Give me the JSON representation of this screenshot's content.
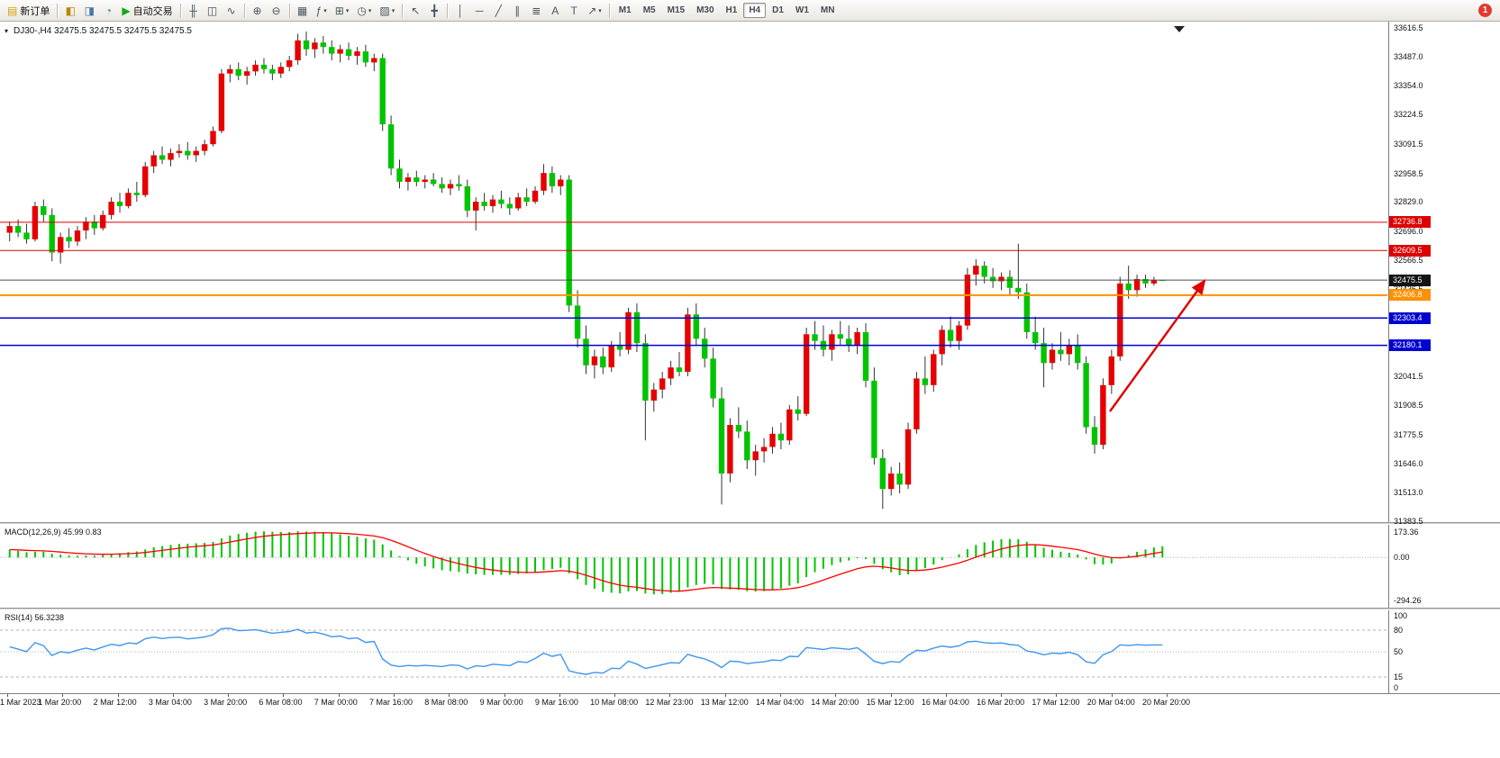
{
  "toolbar": {
    "groups": [
      {
        "items": [
          {
            "name": "new-order",
            "glyph": "▤",
            "glyph_color": "#d59f00",
            "label": "新订单"
          }
        ]
      },
      {
        "items": [
          {
            "name": "chart-window",
            "glyph": "◧",
            "glyph_color": "#b8860b"
          },
          {
            "name": "profiles",
            "glyph": "◨",
            "glyph_color": "#4a76a8"
          },
          {
            "name": "data-window",
            "glyph": "◔",
            "glyph_color": "#4a76a8"
          },
          {
            "name": "auto-trading",
            "glyph": "▶",
            "glyph_color": "#12a812",
            "label": "自动交易"
          }
        ]
      },
      {
        "items": [
          {
            "name": "bars-chart-type",
            "glyph": "╫"
          },
          {
            "name": "candles-chart-type",
            "glyph": "◫"
          },
          {
            "name": "line-chart-type",
            "glyph": "∿"
          }
        ]
      },
      {
        "items": [
          {
            "name": "zoom-in",
            "glyph": "⊕"
          },
          {
            "name": "zoom-out",
            "glyph": "⊖"
          }
        ]
      },
      {
        "items": [
          {
            "name": "tile-windows",
            "glyph": "▦"
          },
          {
            "name": "indicators",
            "glyph": "ƒ",
            "caret": true
          },
          {
            "name": "new-chart",
            "glyph": "⊞",
            "caret": true
          },
          {
            "name": "periods",
            "glyph": "◷",
            "caret": true
          },
          {
            "name": "templates",
            "glyph": "▨",
            "caret": true
          }
        ]
      },
      {
        "items": [
          {
            "name": "cursor-tool",
            "glyph": "↖"
          },
          {
            "name": "crosshair-tool",
            "glyph": "╋"
          }
        ]
      },
      {
        "items": [
          {
            "name": "vertical-line-tool",
            "glyph": "│"
          },
          {
            "name": "horizontal-line-tool",
            "glyph": "─"
          },
          {
            "name": "trendline-tool",
            "glyph": "╱"
          },
          {
            "name": "channel-tool",
            "glyph": "∥"
          },
          {
            "name": "fibonacci-tool",
            "glyph": "≣"
          },
          {
            "name": "text-tool",
            "glyph": "A"
          },
          {
            "name": "label-tool",
            "glyph": "T"
          },
          {
            "name": "arrows-tool",
            "glyph": "↗",
            "caret": true
          }
        ]
      }
    ],
    "timeframes": [
      "M1",
      "M5",
      "M15",
      "M30",
      "H1",
      "H4",
      "D1",
      "W1",
      "MN"
    ],
    "active_timeframe": "H4",
    "notification_badge": "1"
  },
  "chart_data": {
    "type": "candlestick",
    "title_line": "DJ30-,H4  32475.5 32475.5 32475.5 32475.5",
    "symbol": "DJ30-",
    "period": "H4",
    "colors": {
      "up": "#e60000",
      "down": "#00c400",
      "wick": "#333333",
      "macd_hist": "#00c400",
      "macd_signal": "#ff0000",
      "rsi_line": "#3e96f0",
      "levels": "#b3b3b3"
    },
    "main": {
      "ylim": [
        31380,
        33645
      ],
      "price_axis_labels": [
        33616.5,
        33487.0,
        33354.0,
        33224.5,
        33091.5,
        32958.5,
        32829.0,
        32696.0,
        32566.5,
        32436.5,
        32306.5,
        32176.5,
        32041.5,
        31908.5,
        31775.5,
        31646.0,
        31513.0,
        31383.5
      ],
      "horizontal_lines": [
        {
          "name": "resistance-line-1",
          "price": 32736.8,
          "color": "#dd0000",
          "width": 1,
          "tag_bg": "#dd0000"
        },
        {
          "name": "resistance-line-2",
          "price": 32609.5,
          "color": "#dd0000",
          "width": 1,
          "tag_bg": "#dd0000"
        },
        {
          "name": "bid-price-line",
          "price": 32475.5,
          "color": "#4d4d4d",
          "width": 1,
          "tag_bg": "#141414"
        },
        {
          "name": "pivot-line",
          "price": 32406.8,
          "color": "#ff9000",
          "width": 2,
          "tag_bg": "#ff9000"
        },
        {
          "name": "support-line-1",
          "price": 32303.4,
          "color": "#0000d0",
          "width": 1.5,
          "tag_bg": "#0000d0"
        },
        {
          "name": "support-line-2",
          "price": 32180.1,
          "color": "#0000d0",
          "width": 1.5,
          "tag_bg": "#0000d0"
        }
      ],
      "arrow": {
        "from": [
          0.8,
          31880
        ],
        "to": [
          0.868,
          32470
        ],
        "color": "#e00000"
      },
      "candles": [
        [
          32690,
          32740,
          32650,
          32720
        ],
        [
          32720,
          32750,
          32670,
          32690
        ],
        [
          32690,
          32730,
          32640,
          32660
        ],
        [
          32660,
          32830,
          32650,
          32810
        ],
        [
          32810,
          32840,
          32740,
          32770
        ],
        [
          32770,
          32800,
          32560,
          32600
        ],
        [
          32600,
          32690,
          32550,
          32670
        ],
        [
          32670,
          32710,
          32620,
          32650
        ],
        [
          32650,
          32720,
          32630,
          32700
        ],
        [
          32700,
          32760,
          32660,
          32740
        ],
        [
          32740,
          32770,
          32680,
          32710
        ],
        [
          32710,
          32790,
          32700,
          32770
        ],
        [
          32770,
          32850,
          32750,
          32830
        ],
        [
          32830,
          32870,
          32780,
          32810
        ],
        [
          32810,
          32890,
          32800,
          32870
        ],
        [
          32870,
          32920,
          32830,
          32860
        ],
        [
          32860,
          33010,
          32850,
          32990
        ],
        [
          32990,
          33060,
          32960,
          33040
        ],
        [
          33040,
          33080,
          33000,
          33020
        ],
        [
          33020,
          33070,
          32990,
          33050
        ],
        [
          33050,
          33090,
          33030,
          33060
        ],
        [
          33060,
          33100,
          33020,
          33040
        ],
        [
          33040,
          33080,
          33010,
          33060
        ],
        [
          33060,
          33110,
          33040,
          33090
        ],
        [
          33090,
          33170,
          33080,
          33150
        ],
        [
          33150,
          33430,
          33140,
          33410
        ],
        [
          33410,
          33450,
          33370,
          33430
        ],
        [
          33430,
          33460,
          33380,
          33400
        ],
        [
          33400,
          33440,
          33360,
          33420
        ],
        [
          33420,
          33470,
          33400,
          33450
        ],
        [
          33450,
          33480,
          33410,
          33430
        ],
        [
          33430,
          33450,
          33380,
          33410
        ],
        [
          33410,
          33460,
          33390,
          33440
        ],
        [
          33440,
          33490,
          33420,
          33470
        ],
        [
          33470,
          33590,
          33450,
          33560
        ],
        [
          33560,
          33600,
          33490,
          33520
        ],
        [
          33520,
          33570,
          33480,
          33550
        ],
        [
          33550,
          33580,
          33500,
          33530
        ],
        [
          33530,
          33560,
          33470,
          33500
        ],
        [
          33500,
          33540,
          33460,
          33520
        ],
        [
          33520,
          33550,
          33470,
          33490
        ],
        [
          33490,
          33530,
          33450,
          33510
        ],
        [
          33510,
          33540,
          33440,
          33460
        ],
        [
          33460,
          33500,
          33420,
          33480
        ],
        [
          33480,
          33500,
          33150,
          33180
        ],
        [
          33180,
          33220,
          32950,
          32980
        ],
        [
          32980,
          33020,
          32890,
          32920
        ],
        [
          32920,
          32960,
          32880,
          32940
        ],
        [
          32940,
          32970,
          32900,
          32920
        ],
        [
          32920,
          32950,
          32890,
          32930
        ],
        [
          32930,
          32960,
          32900,
          32910
        ],
        [
          32910,
          32940,
          32870,
          32890
        ],
        [
          32890,
          32930,
          32860,
          32910
        ],
        [
          32910,
          32950,
          32880,
          32900
        ],
        [
          32900,
          32930,
          32760,
          32790
        ],
        [
          32790,
          32850,
          32700,
          32830
        ],
        [
          32830,
          32870,
          32790,
          32810
        ],
        [
          32810,
          32860,
          32780,
          32840
        ],
        [
          32840,
          32880,
          32800,
          32820
        ],
        [
          32820,
          32850,
          32770,
          32800
        ],
        [
          32800,
          32870,
          32790,
          32850
        ],
        [
          32850,
          32890,
          32810,
          32830
        ],
        [
          32830,
          32900,
          32820,
          32880
        ],
        [
          32880,
          33000,
          32860,
          32960
        ],
        [
          32960,
          32990,
          32870,
          32900
        ],
        [
          32900,
          32950,
          32860,
          32930
        ],
        [
          32930,
          32950,
          32330,
          32360
        ],
        [
          32360,
          32430,
          32170,
          32210
        ],
        [
          32210,
          32270,
          32050,
          32090
        ],
        [
          32090,
          32160,
          32030,
          32130
        ],
        [
          32130,
          32170,
          32050,
          32080
        ],
        [
          32080,
          32200,
          32060,
          32180
        ],
        [
          32180,
          32240,
          32130,
          32160
        ],
        [
          32160,
          32350,
          32140,
          32330
        ],
        [
          32330,
          32370,
          32150,
          32190
        ],
        [
          32190,
          32230,
          31750,
          31930
        ],
        [
          31930,
          32010,
          31880,
          31980
        ],
        [
          31980,
          32060,
          31940,
          32030
        ],
        [
          32030,
          32110,
          32000,
          32080
        ],
        [
          32080,
          32150,
          32040,
          32060
        ],
        [
          32060,
          32350,
          32040,
          32320
        ],
        [
          32320,
          32370,
          32180,
          32210
        ],
        [
          32210,
          32260,
          32080,
          32120
        ],
        [
          32120,
          32170,
          31900,
          31940
        ],
        [
          31940,
          31990,
          31460,
          31600
        ],
        [
          31600,
          31850,
          31560,
          31820
        ],
        [
          31820,
          31900,
          31760,
          31790
        ],
        [
          31790,
          31840,
          31620,
          31660
        ],
        [
          31660,
          31730,
          31590,
          31700
        ],
        [
          31700,
          31760,
          31650,
          31720
        ],
        [
          31720,
          31810,
          31690,
          31780
        ],
        [
          31780,
          31830,
          31710,
          31750
        ],
        [
          31750,
          31910,
          31730,
          31890
        ],
        [
          31890,
          31950,
          31840,
          31870
        ],
        [
          31870,
          32260,
          31860,
          32230
        ],
        [
          32230,
          32290,
          32160,
          32200
        ],
        [
          32200,
          32270,
          32130,
          32160
        ],
        [
          32160,
          32250,
          32110,
          32230
        ],
        [
          32230,
          32290,
          32180,
          32210
        ],
        [
          32210,
          32270,
          32150,
          32180
        ],
        [
          32180,
          32260,
          32140,
          32240
        ],
        [
          32240,
          32280,
          31990,
          32020
        ],
        [
          32020,
          32080,
          31640,
          31670
        ],
        [
          31670,
          31710,
          31440,
          31530
        ],
        [
          31530,
          31630,
          31500,
          31600
        ],
        [
          31600,
          31650,
          31510,
          31550
        ],
        [
          31550,
          31830,
          31530,
          31800
        ],
        [
          31800,
          32060,
          31780,
          32030
        ],
        [
          32030,
          32130,
          31960,
          32000
        ],
        [
          32000,
          32160,
          31970,
          32140
        ],
        [
          32140,
          32270,
          32090,
          32250
        ],
        [
          32250,
          32310,
          32170,
          32200
        ],
        [
          32200,
          32290,
          32160,
          32270
        ],
        [
          32270,
          32530,
          32250,
          32500
        ],
        [
          32500,
          32570,
          32450,
          32540
        ],
        [
          32540,
          32560,
          32460,
          32490
        ],
        [
          32490,
          32530,
          32440,
          32470
        ],
        [
          32470,
          32510,
          32430,
          32490
        ],
        [
          32490,
          32520,
          32410,
          32440
        ],
        [
          32440,
          32640,
          32390,
          32420
        ],
        [
          32420,
          32460,
          32210,
          32240
        ],
        [
          32240,
          32310,
          32160,
          32190
        ],
        [
          32190,
          32260,
          31990,
          32100
        ],
        [
          32100,
          32190,
          32070,
          32160
        ],
        [
          32160,
          32240,
          32110,
          32140
        ],
        [
          32140,
          32210,
          32090,
          32180
        ],
        [
          32180,
          32230,
          32070,
          32100
        ],
        [
          32100,
          32130,
          31780,
          31810
        ],
        [
          31810,
          31860,
          31690,
          31730
        ],
        [
          31730,
          32030,
          31710,
          32000
        ],
        [
          32000,
          32160,
          31960,
          32130
        ],
        [
          32130,
          32490,
          32110,
          32460
        ],
        [
          32460,
          32540,
          32390,
          32430
        ],
        [
          32430,
          32500,
          32400,
          32480
        ],
        [
          32480,
          32500,
          32440,
          32460
        ],
        [
          32460,
          32490,
          32450,
          32475.5
        ],
        [
          32475.5,
          32475.5,
          32475.5,
          32475.5
        ]
      ]
    },
    "macd": {
      "label": "MACD(12,26,9) 45.99 0.83",
      "params": [
        12,
        26,
        9
      ],
      "ylim": [
        -294.26,
        173.36
      ],
      "axis_values": [
        173.36,
        0.0,
        -294.26
      ]
    },
    "rsi": {
      "label": "RSI(14) 56.3238",
      "period": 14,
      "ylim": [
        0,
        100
      ],
      "levels": [
        80,
        50,
        15
      ],
      "axis_values": [
        100,
        80,
        50,
        15,
        0
      ]
    },
    "time_axis": [
      "1 Mar 2023",
      "1 Mar 20:00",
      "2 Mar 12:00",
      "3 Mar 04:00",
      "3 Mar 20:00",
      "6 Mar 08:00",
      "7 Mar 00:00",
      "7 Mar 16:00",
      "8 Mar 08:00",
      "9 Mar 00:00",
      "9 Mar 16:00",
      "10 Mar 08:00",
      "12 Mar 23:00",
      "13 Mar 12:00",
      "14 Mar 04:00",
      "14 Mar 20:00",
      "15 Mar 12:00",
      "16 Mar 04:00",
      "16 Mar 20:00",
      "17 Mar 12:00",
      "20 Mar 04:00",
      "20 Mar 20:00"
    ]
  }
}
